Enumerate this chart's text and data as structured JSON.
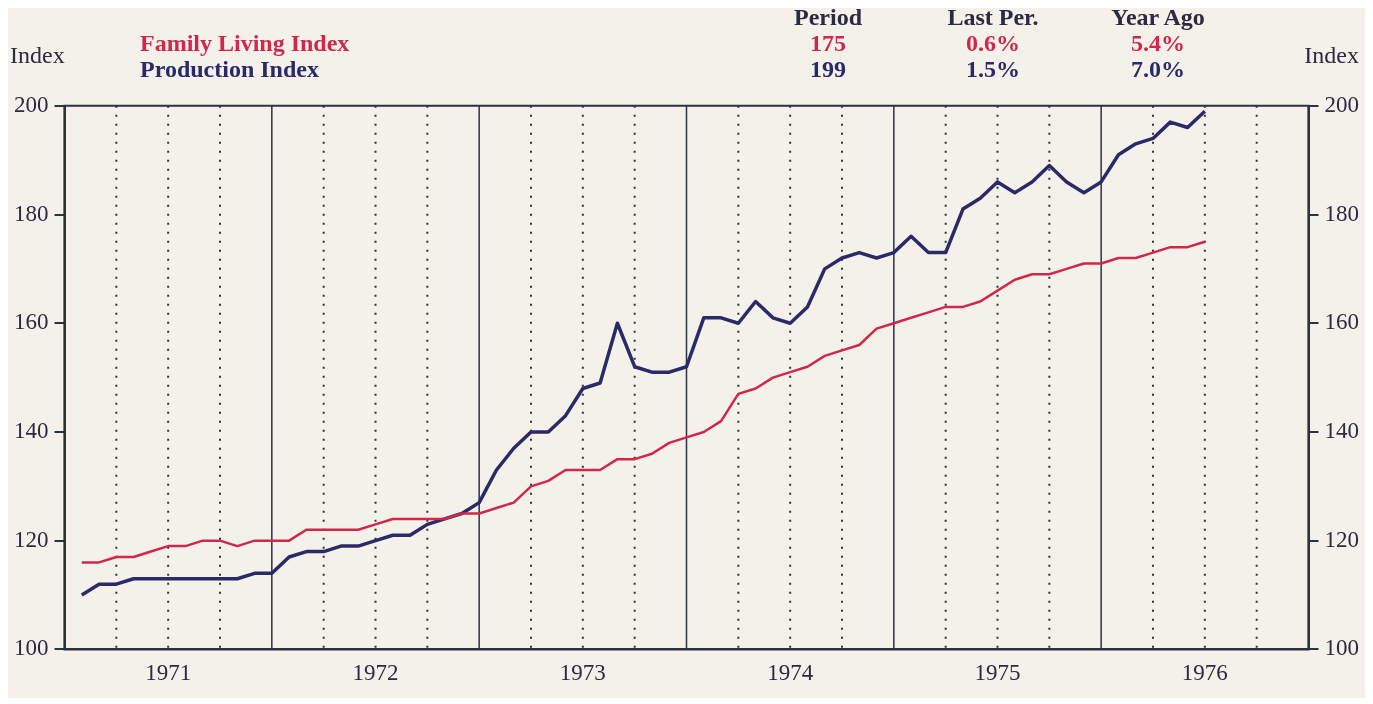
{
  "chart_data": {
    "type": "line",
    "ylabel": "Index",
    "y2label": "Index",
    "x": [
      "1971-02",
      "1971-03",
      "1971-04",
      "1971-05",
      "1971-06",
      "1971-07",
      "1971-08",
      "1971-09",
      "1971-10",
      "1971-11",
      "1971-12",
      "1972-01",
      "1972-02",
      "1972-03",
      "1972-04",
      "1972-05",
      "1972-06",
      "1972-07",
      "1972-08",
      "1972-09",
      "1972-10",
      "1972-11",
      "1972-12",
      "1973-01",
      "1973-02",
      "1973-03",
      "1973-04",
      "1973-05",
      "1973-06",
      "1973-07",
      "1973-08",
      "1973-09",
      "1973-10",
      "1973-11",
      "1973-12",
      "1974-01",
      "1974-02",
      "1974-03",
      "1974-04",
      "1974-05",
      "1974-06",
      "1974-07",
      "1974-08",
      "1974-09",
      "1974-10",
      "1974-11",
      "1974-12",
      "1975-01",
      "1975-02",
      "1975-03",
      "1975-04",
      "1975-05",
      "1975-06",
      "1975-07",
      "1975-08",
      "1975-09",
      "1975-10",
      "1975-11",
      "1975-12",
      "1976-01",
      "1976-02",
      "1976-03",
      "1976-04",
      "1976-05",
      "1976-06",
      "1976-07"
    ],
    "series": [
      {
        "name": "Family Living Index",
        "color": "#d0284a",
        "values": [
          116,
          116,
          117,
          117,
          118,
          119,
          119,
          120,
          120,
          119,
          120,
          120,
          120,
          122,
          122,
          122,
          122,
          123,
          124,
          124,
          124,
          124,
          125,
          125,
          126,
          127,
          130,
          131,
          133,
          133,
          133,
          135,
          135,
          136,
          138,
          139,
          140,
          142,
          147,
          148,
          150,
          151,
          152,
          154,
          155,
          156,
          159,
          160,
          161,
          162,
          163,
          163,
          164,
          166,
          168,
          169,
          169,
          170,
          171,
          171,
          172,
          172,
          173,
          174,
          174,
          175
        ]
      },
      {
        "name": "Production Index",
        "color": "#2a2a68",
        "values": [
          110,
          112,
          112,
          113,
          113,
          113,
          113,
          113,
          113,
          113,
          114,
          114,
          117,
          118,
          118,
          119,
          119,
          120,
          121,
          121,
          123,
          124,
          125,
          127,
          133,
          137,
          140,
          140,
          143,
          148,
          149,
          160,
          152,
          151,
          151,
          152,
          161,
          161,
          160,
          164,
          161,
          160,
          163,
          170,
          172,
          173,
          172,
          173,
          176,
          173,
          173,
          181,
          183,
          186,
          184,
          186,
          189,
          186,
          184,
          186,
          191,
          193,
          194,
          197,
          196,
          199
        ]
      }
    ],
    "xlim": [
      "1971-01",
      "1977-01"
    ],
    "xticks": [
      {
        "value": "1971-01",
        "label": null
      },
      {
        "value": "1971-04",
        "label": null
      },
      {
        "value": "1971-07",
        "label": "1971"
      },
      {
        "value": "1971-10",
        "label": null
      },
      {
        "value": "1972-01",
        "label": null
      },
      {
        "value": "1972-04",
        "label": null
      },
      {
        "value": "1972-07",
        "label": "1972"
      },
      {
        "value": "1972-10",
        "label": null
      },
      {
        "value": "1973-01",
        "label": null
      },
      {
        "value": "1973-04",
        "label": null
      },
      {
        "value": "1973-07",
        "label": "1973"
      },
      {
        "value": "1973-10",
        "label": null
      },
      {
        "value": "1974-01",
        "label": null
      },
      {
        "value": "1974-04",
        "label": null
      },
      {
        "value": "1974-07",
        "label": "1974"
      },
      {
        "value": "1974-10",
        "label": null
      },
      {
        "value": "1975-01",
        "label": null
      },
      {
        "value": "1975-04",
        "label": null
      },
      {
        "value": "1975-07",
        "label": "1975"
      },
      {
        "value": "1975-10",
        "label": null
      },
      {
        "value": "1976-01",
        "label": null
      },
      {
        "value": "1976-04",
        "label": null
      },
      {
        "value": "1976-07",
        "label": "1976"
      },
      {
        "value": "1976-10",
        "label": null
      },
      {
        "value": "1977-01",
        "label": null
      }
    ],
    "ylim": [
      100,
      200
    ],
    "yticks": [
      100,
      120,
      140,
      160,
      180,
      200
    ],
    "y2lim": [
      100,
      200
    ],
    "y2ticks": [
      100,
      120,
      140,
      160,
      180,
      200
    ],
    "grid": "x",
    "legend": "top left",
    "annotations": [
      "Period",
      "Last Per.",
      "Year Ago",
      "175",
      "0.6%",
      "5.4%",
      "199",
      "1.5%",
      "7.0%"
    ]
  }
}
